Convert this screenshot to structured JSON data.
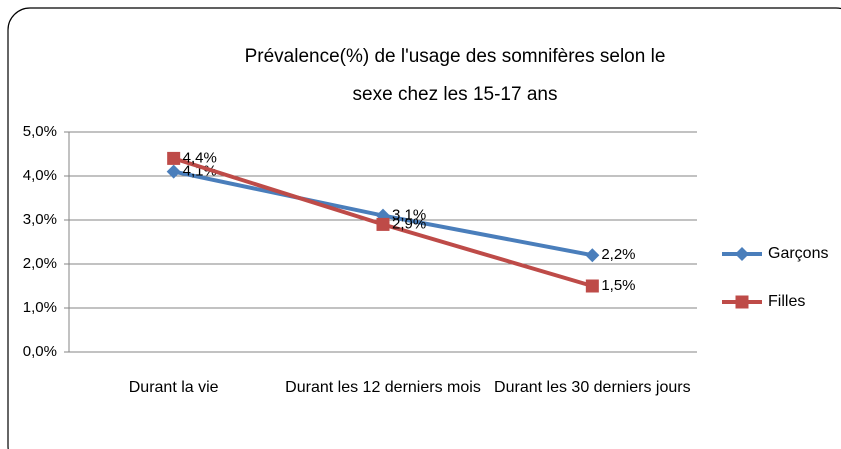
{
  "chart_data": {
    "type": "line",
    "title": "Prévalence(%) de l'usage des somnifères selon le sexe chez les 15-17 ans",
    "categories": [
      "Durant la vie",
      "Durant les 12 derniers mois",
      "Durant les 30 derniers jours"
    ],
    "series": [
      {
        "name": "Garçons",
        "color": "#4a7ebb",
        "marker": "diamond",
        "values": [
          4.1,
          3.1,
          2.2
        ],
        "value_labels": [
          "4,1%",
          "3,1%",
          "2,2%"
        ]
      },
      {
        "name": "Filles",
        "color": "#be4b48",
        "marker": "square",
        "values": [
          4.4,
          2.9,
          1.5
        ],
        "value_labels": [
          "4,4%",
          "2,9%",
          "1,5%"
        ]
      }
    ],
    "ylim": [
      0,
      5
    ],
    "yticks": [
      {
        "value": 0,
        "label": "0,0%"
      },
      {
        "value": 1,
        "label": "1,0%"
      },
      {
        "value": 2,
        "label": "2,0%"
      },
      {
        "value": 3,
        "label": "3,0%"
      },
      {
        "value": 4,
        "label": "4,0%"
      },
      {
        "value": 5,
        "label": "5,0%"
      }
    ],
    "grid": true,
    "legend": "right"
  }
}
